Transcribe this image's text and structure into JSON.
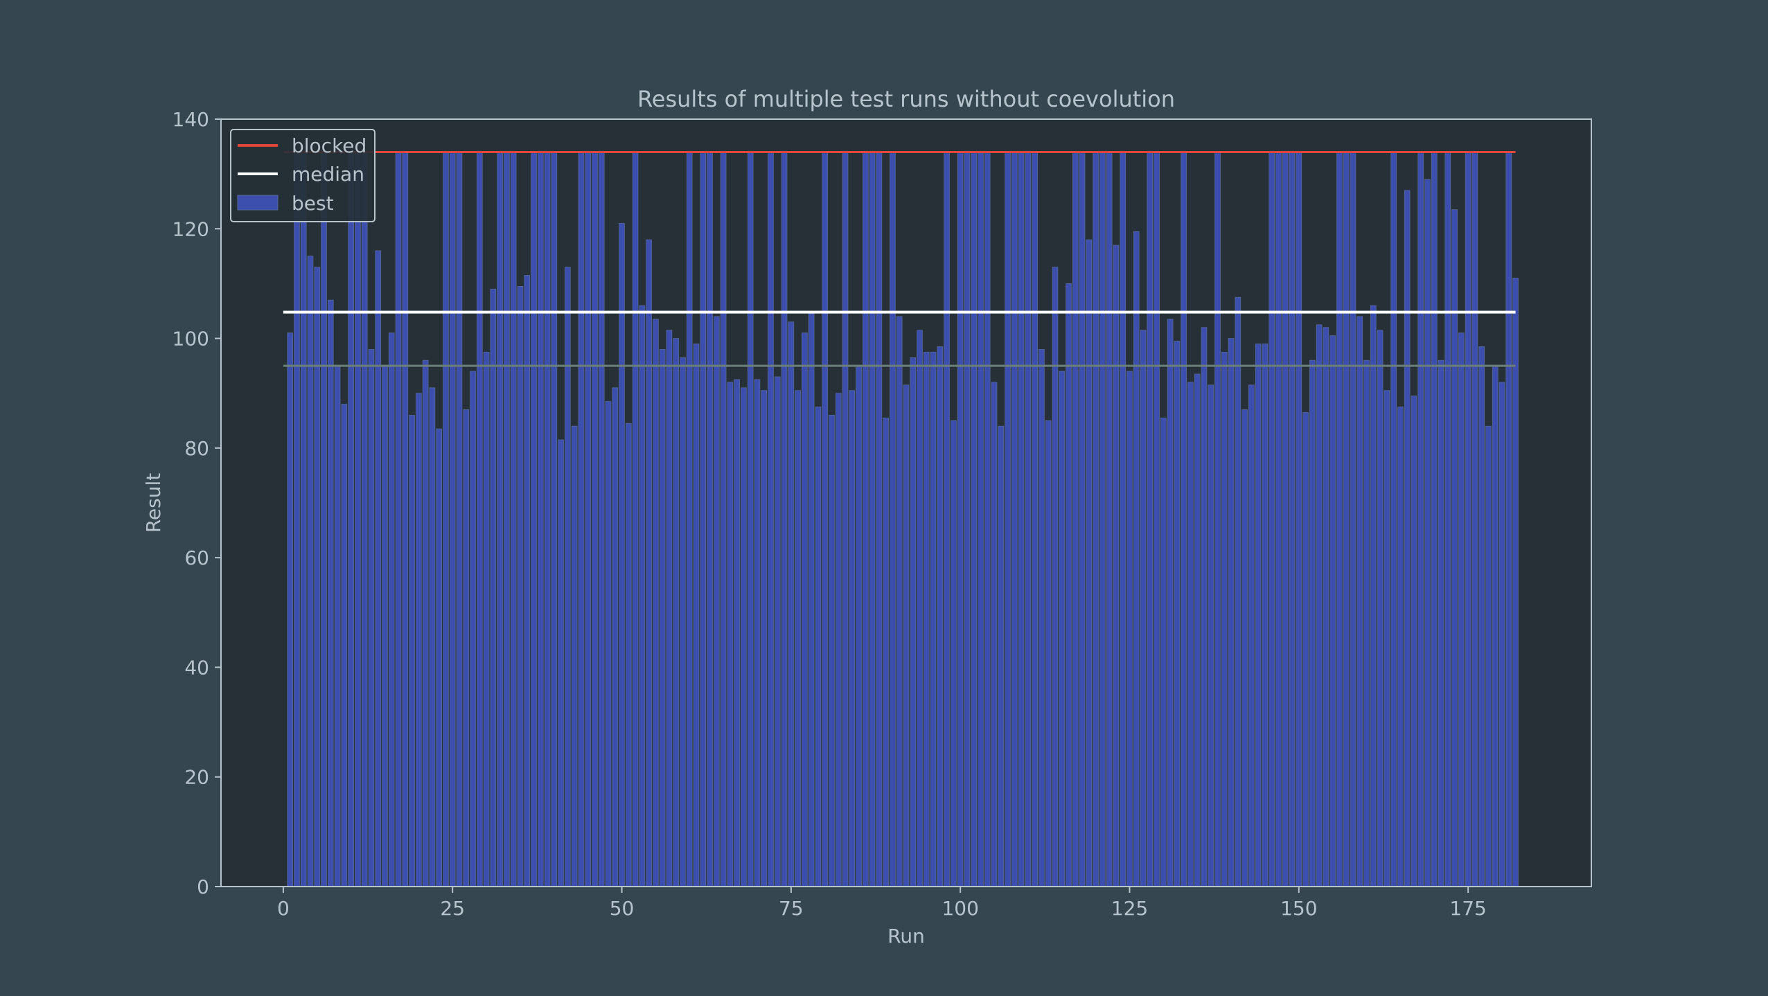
{
  "chart_data": {
    "type": "bar",
    "title": "Results of multiple test runs without coevolution",
    "xlabel": "Run",
    "ylabel": "Result",
    "xlim": [
      -9.2,
      193.2
    ],
    "ylim": [
      0,
      140
    ],
    "xticks": [
      0,
      25,
      50,
      75,
      100,
      125,
      150,
      175
    ],
    "yticks": [
      0,
      20,
      40,
      60,
      80,
      100,
      120,
      140
    ],
    "grid": false,
    "legend_position": "top-left",
    "legend": [
      {
        "label": "blocked",
        "kind": "line",
        "color": "#e0473b"
      },
      {
        "label": "median",
        "kind": "line",
        "color": "#ffffff"
      },
      {
        "label": "best",
        "kind": "bar",
        "color": "#3d4fae"
      }
    ],
    "lines": [
      {
        "name": "blocked",
        "y": 134,
        "color": "#e0473b"
      },
      {
        "name": "median",
        "y": 104.8,
        "color": "#ffffff"
      },
      {
        "name": "",
        "y": 95,
        "color": "#6b7f78"
      }
    ],
    "colors": {
      "background": "#36464e",
      "plot_background": "#263036",
      "bar": "#3d4fae",
      "bar_edge": "#56689a",
      "axis": "#b8c4cc",
      "text": "#b8c4cc"
    },
    "series": [
      {
        "name": "best",
        "x_start": 1,
        "values": [
          101,
          134,
          134,
          115,
          113,
          134,
          107,
          95,
          88,
          134,
          134,
          134,
          98,
          116,
          95,
          101,
          134,
          134,
          86,
          90,
          96,
          91,
          83.5,
          134,
          134,
          134,
          87,
          94,
          134,
          97.5,
          109,
          134,
          134,
          134,
          109.5,
          111.5,
          134,
          134,
          134,
          134,
          81.5,
          113,
          84,
          134,
          134,
          134,
          134,
          88.5,
          91,
          121,
          84.5,
          134,
          106,
          118,
          103.5,
          98,
          101.5,
          100,
          96.5,
          134,
          99,
          134,
          134,
          104,
          134,
          92,
          92.5,
          91,
          134,
          92.5,
          90.5,
          134,
          93,
          134,
          103,
          90.5,
          101,
          104.5,
          87.5,
          134,
          86,
          90,
          134,
          90.5,
          95,
          134,
          134,
          134,
          85.5,
          134,
          104,
          91.5,
          96.5,
          101.5,
          97.5,
          97.5,
          98.5,
          134,
          85,
          134,
          134,
          134,
          134,
          134,
          92,
          84,
          134,
          134,
          134,
          134,
          134,
          98,
          85,
          113,
          94,
          110,
          134,
          134,
          118,
          134,
          134,
          134,
          117,
          134,
          94,
          119.5,
          101.5,
          134,
          134,
          85.5,
          103.5,
          99.5,
          134,
          92,
          93.5,
          102,
          91.5,
          134,
          97.5,
          100,
          107.5,
          87,
          91.5,
          99,
          99,
          134,
          134,
          134,
          134,
          134,
          86.5,
          96,
          102.5,
          102,
          100.5,
          134,
          134,
          134,
          104,
          96,
          106,
          101.5,
          90.5,
          134,
          87.5,
          127,
          89.5,
          134,
          129,
          134,
          96,
          134,
          123.5,
          101,
          134,
          134,
          98.5,
          84,
          95,
          92,
          134,
          111
        ]
      }
    ]
  }
}
